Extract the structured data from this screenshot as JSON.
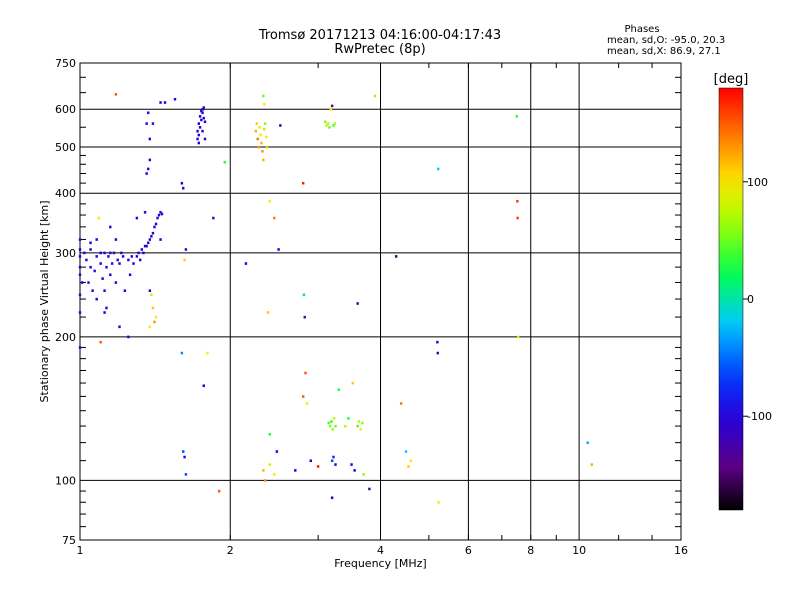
{
  "header": {
    "title_line1": "Tromsø 20171213 04:16:00-04:17:43",
    "title_line2": "RwPretec (8p)"
  },
  "phases_box": {
    "heading": "Phases",
    "line_o": "mean, sd,O: -95.0, 20.3",
    "line_x": "mean, sd,X:  86.9, 27.1"
  },
  "chart_data": {
    "type": "scatter",
    "xlabel": "Frequency [MHz]",
    "ylabel": "Stationary phase Virtual Height [km]",
    "x_scale": "log",
    "y_scale": "log",
    "xlim": [
      1,
      16
    ],
    "ylim": [
      75,
      750
    ],
    "x_ticks": [
      1,
      2,
      4,
      6,
      8,
      10,
      16
    ],
    "x_tick_labels": [
      "1",
      "2",
      "4",
      "6",
      "8",
      "10",
      "16"
    ],
    "y_ticks": [
      75,
      100,
      200,
      300,
      400,
      500,
      600,
      750
    ],
    "y_tick_labels": [
      "75",
      "100",
      "200",
      "300",
      "400",
      "500",
      "600",
      "750"
    ],
    "grid": true,
    "colorbar": {
      "label": "[deg]",
      "range": [
        -180,
        180
      ],
      "ticks": [
        -100,
        0,
        100
      ],
      "tick_labels": [
        "-100",
        "0",
        "100"
      ]
    },
    "points": [
      {
        "f": 1.0,
        "h": 295,
        "phase": -100
      },
      {
        "f": 1.0,
        "h": 305,
        "phase": -100
      },
      {
        "f": 1.0,
        "h": 320,
        "phase": -95
      },
      {
        "f": 1.0,
        "h": 280,
        "phase": -100
      },
      {
        "f": 1.0,
        "h": 270,
        "phase": -100
      },
      {
        "f": 1.0,
        "h": 245,
        "phase": -100
      },
      {
        "f": 1.0,
        "h": 225,
        "phase": -95
      },
      {
        "f": 1.0,
        "h": 190,
        "phase": -105
      },
      {
        "f": 1.01,
        "h": 260,
        "phase": -100
      },
      {
        "f": 1.02,
        "h": 300,
        "phase": -105
      },
      {
        "f": 1.03,
        "h": 290,
        "phase": -100
      },
      {
        "f": 1.04,
        "h": 260,
        "phase": -95
      },
      {
        "f": 1.05,
        "h": 280,
        "phase": -100
      },
      {
        "f": 1.05,
        "h": 305,
        "phase": -100
      },
      {
        "f": 1.06,
        "h": 250,
        "phase": -95
      },
      {
        "f": 1.07,
        "h": 275,
        "phase": -100
      },
      {
        "f": 1.08,
        "h": 295,
        "phase": -100
      },
      {
        "f": 1.08,
        "h": 240,
        "phase": -100
      },
      {
        "f": 1.09,
        "h": 355,
        "phase": 100
      },
      {
        "f": 1.1,
        "h": 300,
        "phase": -100
      },
      {
        "f": 1.1,
        "h": 285,
        "phase": -100
      },
      {
        "f": 1.11,
        "h": 265,
        "phase": -100
      },
      {
        "f": 1.12,
        "h": 300,
        "phase": -100
      },
      {
        "f": 1.12,
        "h": 250,
        "phase": -100
      },
      {
        "f": 1.13,
        "h": 280,
        "phase": -100
      },
      {
        "f": 1.13,
        "h": 230,
        "phase": -100
      },
      {
        "f": 1.14,
        "h": 295,
        "phase": -100
      },
      {
        "f": 1.15,
        "h": 270,
        "phase": -100
      },
      {
        "f": 1.15,
        "h": 300,
        "phase": -100
      },
      {
        "f": 1.16,
        "h": 285,
        "phase": -95
      },
      {
        "f": 1.17,
        "h": 300,
        "phase": -100
      },
      {
        "f": 1.18,
        "h": 260,
        "phase": -100
      },
      {
        "f": 1.19,
        "h": 290,
        "phase": -100
      },
      {
        "f": 1.2,
        "h": 285,
        "phase": -100
      },
      {
        "f": 1.21,
        "h": 300,
        "phase": -100
      },
      {
        "f": 1.1,
        "h": 195,
        "phase": 150
      },
      {
        "f": 1.12,
        "h": 225,
        "phase": -100
      },
      {
        "f": 1.15,
        "h": 340,
        "phase": -100
      },
      {
        "f": 1.18,
        "h": 320,
        "phase": -100
      },
      {
        "f": 1.2,
        "h": 210,
        "phase": -100
      },
      {
        "f": 1.22,
        "h": 295,
        "phase": -100
      },
      {
        "f": 1.23,
        "h": 250,
        "phase": -100
      },
      {
        "f": 1.25,
        "h": 290,
        "phase": -100
      },
      {
        "f": 1.26,
        "h": 270,
        "phase": -100
      },
      {
        "f": 1.27,
        "h": 295,
        "phase": -100
      },
      {
        "f": 1.28,
        "h": 285,
        "phase": -100
      },
      {
        "f": 1.3,
        "h": 295,
        "phase": -100
      },
      {
        "f": 1.31,
        "h": 300,
        "phase": -100
      },
      {
        "f": 1.32,
        "h": 290,
        "phase": -100
      },
      {
        "f": 1.33,
        "h": 305,
        "phase": -100
      },
      {
        "f": 1.34,
        "h": 300,
        "phase": -100
      },
      {
        "f": 1.35,
        "h": 310,
        "phase": -100
      },
      {
        "f": 1.36,
        "h": 310,
        "phase": -100
      },
      {
        "f": 1.37,
        "h": 315,
        "phase": -100
      },
      {
        "f": 1.38,
        "h": 320,
        "phase": -100
      },
      {
        "f": 1.39,
        "h": 325,
        "phase": -100
      },
      {
        "f": 1.4,
        "h": 330,
        "phase": -100
      },
      {
        "f": 1.41,
        "h": 340,
        "phase": -100
      },
      {
        "f": 1.42,
        "h": 345,
        "phase": -100
      },
      {
        "f": 1.43,
        "h": 355,
        "phase": -100
      },
      {
        "f": 1.44,
        "h": 360,
        "phase": -100
      },
      {
        "f": 1.45,
        "h": 365,
        "phase": -100
      },
      {
        "f": 1.46,
        "h": 362,
        "phase": -100
      },
      {
        "f": 1.35,
        "h": 365,
        "phase": -100
      },
      {
        "f": 1.36,
        "h": 440,
        "phase": -100
      },
      {
        "f": 1.37,
        "h": 450,
        "phase": -100
      },
      {
        "f": 1.38,
        "h": 470,
        "phase": -100
      },
      {
        "f": 1.36,
        "h": 560,
        "phase": -95
      },
      {
        "f": 1.37,
        "h": 590,
        "phase": -95
      },
      {
        "f": 1.38,
        "h": 520,
        "phase": -100
      },
      {
        "f": 1.4,
        "h": 560,
        "phase": -95
      },
      {
        "f": 1.45,
        "h": 620,
        "phase": -100
      },
      {
        "f": 1.48,
        "h": 620,
        "phase": -100
      },
      {
        "f": 1.38,
        "h": 250,
        "phase": -100
      },
      {
        "f": 1.39,
        "h": 245,
        "phase": 80
      },
      {
        "f": 1.4,
        "h": 230,
        "phase": 110
      },
      {
        "f": 1.41,
        "h": 215,
        "phase": 130
      },
      {
        "f": 1.42,
        "h": 220,
        "phase": 100
      },
      {
        "f": 1.38,
        "h": 210,
        "phase": 100
      },
      {
        "f": 1.3,
        "h": 355,
        "phase": -100
      },
      {
        "f": 1.25,
        "h": 200,
        "phase": -100
      },
      {
        "f": 1.6,
        "h": 420,
        "phase": -100
      },
      {
        "f": 1.61,
        "h": 410,
        "phase": -100
      },
      {
        "f": 1.62,
        "h": 290,
        "phase": 110
      },
      {
        "f": 1.63,
        "h": 305,
        "phase": -100
      },
      {
        "f": 1.6,
        "h": 185,
        "phase": -40
      },
      {
        "f": 1.61,
        "h": 115,
        "phase": -60
      },
      {
        "f": 1.62,
        "h": 112,
        "phase": -100
      },
      {
        "f": 1.63,
        "h": 103,
        "phase": -60
      },
      {
        "f": 1.55,
        "h": 630,
        "phase": -100
      },
      {
        "f": 1.72,
        "h": 540,
        "phase": -100
      },
      {
        "f": 1.73,
        "h": 560,
        "phase": -100
      },
      {
        "f": 1.74,
        "h": 580,
        "phase": -100
      },
      {
        "f": 1.75,
        "h": 595,
        "phase": -100
      },
      {
        "f": 1.76,
        "h": 600,
        "phase": -100
      },
      {
        "f": 1.77,
        "h": 605,
        "phase": -100
      },
      {
        "f": 1.72,
        "h": 520,
        "phase": -100
      },
      {
        "f": 1.73,
        "h": 510,
        "phase": -100
      },
      {
        "f": 1.74,
        "h": 550,
        "phase": -100
      },
      {
        "f": 1.75,
        "h": 570,
        "phase": -100
      },
      {
        "f": 1.76,
        "h": 590,
        "phase": -100
      },
      {
        "f": 1.77,
        "h": 575,
        "phase": -100
      },
      {
        "f": 1.78,
        "h": 565,
        "phase": -100
      },
      {
        "f": 1.73,
        "h": 530,
        "phase": -100
      },
      {
        "f": 1.76,
        "h": 540,
        "phase": -100
      },
      {
        "f": 1.78,
        "h": 520,
        "phase": -100
      },
      {
        "f": 1.8,
        "h": 185,
        "phase": 100
      },
      {
        "f": 1.77,
        "h": 158,
        "phase": -100
      },
      {
        "f": 1.85,
        "h": 355,
        "phase": -120
      },
      {
        "f": 1.9,
        "h": 95,
        "phase": 150
      },
      {
        "f": 1.95,
        "h": 465,
        "phase": 30
      },
      {
        "f": 2.15,
        "h": 285,
        "phase": -100
      },
      {
        "f": 2.25,
        "h": 540,
        "phase": 120
      },
      {
        "f": 2.26,
        "h": 560,
        "phase": 110
      },
      {
        "f": 2.27,
        "h": 520,
        "phase": 140
      },
      {
        "f": 2.28,
        "h": 500,
        "phase": 130
      },
      {
        "f": 2.29,
        "h": 550,
        "phase": 90
      },
      {
        "f": 2.3,
        "h": 530,
        "phase": 100
      },
      {
        "f": 2.31,
        "h": 510,
        "phase": 120
      },
      {
        "f": 2.32,
        "h": 490,
        "phase": 130
      },
      {
        "f": 2.33,
        "h": 470,
        "phase": 120
      },
      {
        "f": 2.34,
        "h": 545,
        "phase": 80
      },
      {
        "f": 2.35,
        "h": 560,
        "phase": 60
      },
      {
        "f": 2.36,
        "h": 525,
        "phase": 100
      },
      {
        "f": 2.37,
        "h": 500,
        "phase": 110
      },
      {
        "f": 2.33,
        "h": 640,
        "phase": 50
      },
      {
        "f": 2.34,
        "h": 615,
        "phase": 100
      },
      {
        "f": 2.33,
        "h": 105,
        "phase": 120
      },
      {
        "f": 2.35,
        "h": 100,
        "phase": 130
      },
      {
        "f": 2.4,
        "h": 108,
        "phase": 90
      },
      {
        "f": 2.38,
        "h": 225,
        "phase": 110
      },
      {
        "f": 2.4,
        "h": 385,
        "phase": 100
      },
      {
        "f": 2.45,
        "h": 355,
        "phase": 140
      },
      {
        "f": 2.45,
        "h": 103,
        "phase": 100
      },
      {
        "f": 2.48,
        "h": 115,
        "phase": -100
      },
      {
        "f": 2.5,
        "h": 305,
        "phase": -100
      },
      {
        "f": 2.52,
        "h": 555,
        "phase": -120
      },
      {
        "f": 2.4,
        "h": 125,
        "phase": 30
      },
      {
        "f": 2.7,
        "h": 105,
        "phase": -100
      },
      {
        "f": 2.8,
        "h": 420,
        "phase": 170
      },
      {
        "f": 2.81,
        "h": 245,
        "phase": -10
      },
      {
        "f": 2.82,
        "h": 220,
        "phase": -130
      },
      {
        "f": 2.83,
        "h": 168,
        "phase": 150
      },
      {
        "f": 2.8,
        "h": 150,
        "phase": 150
      },
      {
        "f": 2.85,
        "h": 145,
        "phase": 100
      },
      {
        "f": 2.9,
        "h": 110,
        "phase": -100
      },
      {
        "f": 3.0,
        "h": 107,
        "phase": 170
      },
      {
        "f": 3.1,
        "h": 565,
        "phase": 60
      },
      {
        "f": 3.12,
        "h": 555,
        "phase": 80
      },
      {
        "f": 3.14,
        "h": 560,
        "phase": 70
      },
      {
        "f": 3.16,
        "h": 550,
        "phase": 50
      },
      {
        "f": 3.18,
        "h": 600,
        "phase": 100
      },
      {
        "f": 3.2,
        "h": 610,
        "phase": -130
      },
      {
        "f": 3.22,
        "h": 555,
        "phase": 40
      },
      {
        "f": 3.24,
        "h": 560,
        "phase": 70
      },
      {
        "f": 3.15,
        "h": 132,
        "phase": 40
      },
      {
        "f": 3.17,
        "h": 130,
        "phase": 60
      },
      {
        "f": 3.19,
        "h": 133,
        "phase": 30
      },
      {
        "f": 3.21,
        "h": 128,
        "phase": 60
      },
      {
        "f": 3.23,
        "h": 135,
        "phase": 80
      },
      {
        "f": 3.25,
        "h": 130,
        "phase": 50
      },
      {
        "f": 3.2,
        "h": 110,
        "phase": -60
      },
      {
        "f": 3.22,
        "h": 112,
        "phase": -80
      },
      {
        "f": 3.25,
        "h": 108,
        "phase": -100
      },
      {
        "f": 3.3,
        "h": 155,
        "phase": 30
      },
      {
        "f": 3.2,
        "h": 92,
        "phase": -100
      },
      {
        "f": 3.4,
        "h": 130,
        "phase": 80
      },
      {
        "f": 3.45,
        "h": 135,
        "phase": 30
      },
      {
        "f": 3.5,
        "h": 108,
        "phase": -100
      },
      {
        "f": 3.55,
        "h": 105,
        "phase": -100
      },
      {
        "f": 3.6,
        "h": 130,
        "phase": 40
      },
      {
        "f": 3.62,
        "h": 133,
        "phase": 80
      },
      {
        "f": 3.65,
        "h": 128,
        "phase": 100
      },
      {
        "f": 3.68,
        "h": 132,
        "phase": 60
      },
      {
        "f": 3.7,
        "h": 103,
        "phase": 60
      },
      {
        "f": 3.52,
        "h": 160,
        "phase": 110
      },
      {
        "f": 3.6,
        "h": 235,
        "phase": -120
      },
      {
        "f": 3.8,
        "h": 96,
        "phase": -130
      },
      {
        "f": 3.9,
        "h": 640,
        "phase": 110
      },
      {
        "f": 4.3,
        "h": 295,
        "phase": -150
      },
      {
        "f": 4.4,
        "h": 145,
        "phase": 140
      },
      {
        "f": 4.5,
        "h": 115,
        "phase": -20
      },
      {
        "f": 4.55,
        "h": 107,
        "phase": 110
      },
      {
        "f": 4.6,
        "h": 110,
        "phase": 100
      },
      {
        "f": 5.2,
        "h": 195,
        "phase": -110
      },
      {
        "f": 5.21,
        "h": 185,
        "phase": -120
      },
      {
        "f": 5.22,
        "h": 450,
        "phase": -20
      },
      {
        "f": 5.23,
        "h": 90,
        "phase": 100
      },
      {
        "f": 7.5,
        "h": 580,
        "phase": 30
      },
      {
        "f": 7.52,
        "h": 385,
        "phase": 160
      },
      {
        "f": 7.53,
        "h": 355,
        "phase": 160
      },
      {
        "f": 7.55,
        "h": 200,
        "phase": 100
      },
      {
        "f": 10.4,
        "h": 120,
        "phase": -30
      },
      {
        "f": 10.6,
        "h": 108,
        "phase": 120
      },
      {
        "f": 1.18,
        "h": 645,
        "phase": 150
      },
      {
        "f": 1.45,
        "h": 320,
        "phase": -100
      },
      {
        "f": 1.05,
        "h": 315,
        "phase": -100
      },
      {
        "f": 1.08,
        "h": 320,
        "phase": -100
      }
    ]
  }
}
